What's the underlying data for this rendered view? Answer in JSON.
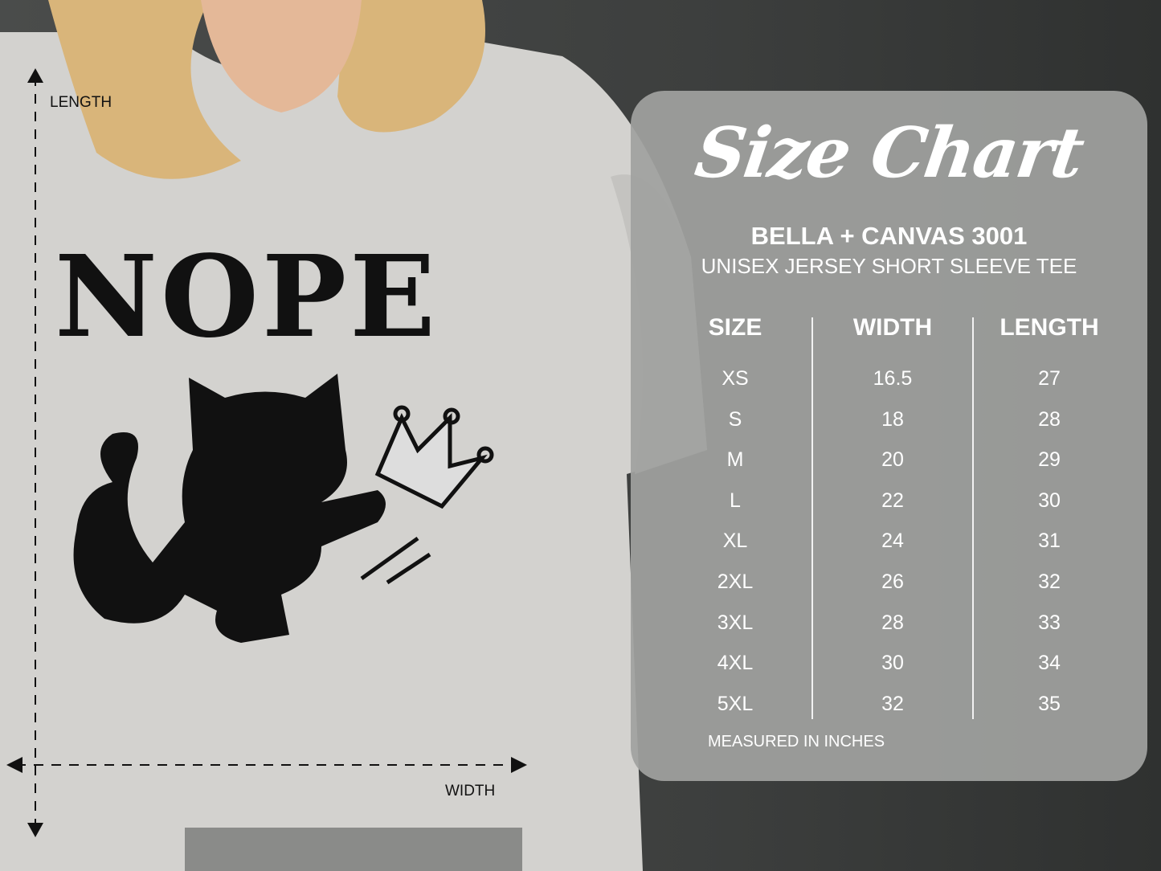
{
  "shirt": {
    "print_text": "NOPE",
    "length_label": "LENGTH",
    "width_label": "WIDTH"
  },
  "chart": {
    "title": "Size Chart",
    "brand": "BELLA + CANVAS 3001",
    "subtitle": "UNISEX JERSEY SHORT SLEEVE TEE",
    "headers": [
      "SIZE",
      "WIDTH",
      "LENGTH"
    ],
    "rows": [
      [
        "XS",
        "16.5",
        "27"
      ],
      [
        "S",
        "18",
        "28"
      ],
      [
        "M",
        "20",
        "29"
      ],
      [
        "L",
        "22",
        "30"
      ],
      [
        "XL",
        "24",
        "31"
      ],
      [
        "2XL",
        "26",
        "32"
      ],
      [
        "3XL",
        "28",
        "33"
      ],
      [
        "4XL",
        "30",
        "34"
      ],
      [
        "5XL",
        "32",
        "35"
      ]
    ],
    "footnote": "MEASURED IN INCHES"
  },
  "colors": {
    "panel": "#a0a19f",
    "shirt": "#d3d2cf",
    "hair": "#d9b57a",
    "ink": "#111111"
  }
}
